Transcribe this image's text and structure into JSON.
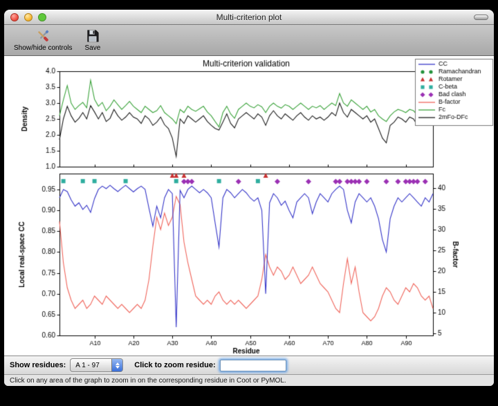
{
  "window": {
    "title": "Multi-criterion plot"
  },
  "toolbar": {
    "show_hide_label": "Show/hide controls",
    "save_label": "Save"
  },
  "controls": {
    "show_residues_label": "Show residues:",
    "chain_range_value": "A  1 - 97",
    "zoom_label": "Click to zoom residue:",
    "zoom_value": ""
  },
  "status": {
    "message": "Click on any area of the graph to zoom in on the corresponding residue in Coot or PyMOL."
  },
  "chart_data": [
    {
      "id": "density-plot",
      "type": "line",
      "title": "Multi-criterion validation",
      "ylabel": "Density",
      "ylim": [
        1.0,
        4.0
      ],
      "yticks": [
        1.0,
        1.5,
        2.0,
        2.5,
        3.0,
        3.5,
        4.0
      ],
      "ytick_labels": [
        "1.0",
        "1.5",
        "2.0",
        "2.5",
        "3.0",
        "3.5",
        "4.0"
      ],
      "xlim": [
        1,
        97
      ],
      "grid": false,
      "series": [
        {
          "name": "Fc",
          "color": "#3aa33a",
          "values": [
            2.6,
            3.1,
            3.55,
            3.0,
            2.8,
            2.92,
            3.02,
            2.85,
            3.72,
            3.12,
            2.9,
            3.02,
            2.76,
            2.9,
            3.1,
            2.95,
            2.8,
            2.92,
            3.05,
            2.9,
            2.8,
            2.7,
            2.9,
            2.8,
            2.7,
            2.76,
            2.92,
            2.7,
            2.6,
            2.5,
            2.35,
            2.8,
            2.7,
            2.9,
            2.8,
            2.74,
            2.82,
            2.9,
            2.72,
            2.6,
            2.42,
            2.25,
            2.7,
            2.9,
            2.66,
            2.52,
            2.8,
            2.9,
            3.0,
            2.9,
            2.85,
            2.95,
            2.88,
            2.7,
            2.9,
            3.0,
            2.9,
            2.84,
            2.95,
            2.9,
            2.8,
            2.9,
            3.0,
            2.9,
            2.8,
            2.9,
            2.85,
            2.92,
            2.8,
            2.9,
            3.0,
            2.92,
            3.3,
            3.0,
            2.9,
            3.1,
            3.0,
            2.9,
            2.8,
            2.9,
            2.72,
            2.8,
            2.6,
            2.5,
            2.42,
            2.6,
            2.72,
            2.8,
            2.76,
            2.7,
            2.8,
            2.76,
            2.62,
            2.8,
            3.5,
            3.3,
            3.4
          ]
        },
        {
          "name": "2mFo-DFc",
          "color": "#1a1a1a",
          "values": [
            1.85,
            2.5,
            2.9,
            2.6,
            2.4,
            2.52,
            2.7,
            2.5,
            2.92,
            2.72,
            2.5,
            2.7,
            2.42,
            2.52,
            2.8,
            2.6,
            2.46,
            2.56,
            2.7,
            2.56,
            2.5,
            2.36,
            2.6,
            2.5,
            2.3,
            2.4,
            2.56,
            2.32,
            2.2,
            1.9,
            1.32,
            2.5,
            2.36,
            2.6,
            2.5,
            2.4,
            2.5,
            2.6,
            2.42,
            2.3,
            2.2,
            2.15,
            2.4,
            2.66,
            2.36,
            2.22,
            2.5,
            2.6,
            2.7,
            2.6,
            2.5,
            2.66,
            2.56,
            2.3,
            2.6,
            2.76,
            2.6,
            2.5,
            2.66,
            2.56,
            2.46,
            2.6,
            2.7,
            2.56,
            2.46,
            2.6,
            2.5,
            2.56,
            2.46,
            2.56,
            2.7,
            2.6,
            3.0,
            2.7,
            2.56,
            2.8,
            2.7,
            2.6,
            2.5,
            2.6,
            2.4,
            2.5,
            2.2,
            1.9,
            1.75,
            2.3,
            2.4,
            2.56,
            2.5,
            2.4,
            2.56,
            2.5,
            2.3,
            2.5,
            3.1,
            2.8,
            3.0
          ]
        }
      ],
      "legend": {
        "position": "upper right",
        "entries": [
          {
            "label": "CC",
            "sample": "line",
            "color": "#3434c8"
          },
          {
            "label": "Ramachandran",
            "sample": "circle",
            "color": "#22913a"
          },
          {
            "label": "Rotamer",
            "sample": "triangle",
            "color": "#c83232"
          },
          {
            "label": "C-beta",
            "sample": "square",
            "color": "#2fae9f"
          },
          {
            "label": "Bad clash",
            "sample": "diamond",
            "color": "#9b30b4"
          },
          {
            "label": "B-factor",
            "sample": "line",
            "color": "#f0645a"
          },
          {
            "label": "Fc",
            "sample": "line",
            "color": "#3aa33a"
          },
          {
            "label": "2mFo-DFc",
            "sample": "line",
            "color": "#1a1a1a"
          }
        ]
      }
    },
    {
      "id": "cc-bfactor-plot",
      "type": "line",
      "xlabel": "Residue",
      "ylabel": "Local real-space CC",
      "y2label": "B-factor",
      "ylim": [
        0.6,
        0.988
      ],
      "yticks": [
        0.6,
        0.65,
        0.7,
        0.75,
        0.8,
        0.85,
        0.9,
        0.95
      ],
      "ytick_labels": [
        "0.60",
        "0.65",
        "0.70",
        "0.75",
        "0.80",
        "0.85",
        "0.90",
        "0.95"
      ],
      "y2lim": [
        4.5,
        43.5
      ],
      "y2ticks": [
        5,
        10,
        15,
        20,
        25,
        30,
        35,
        40
      ],
      "xlim": [
        1,
        97
      ],
      "xticks": [
        10,
        20,
        30,
        40,
        50,
        60,
        70,
        80,
        90
      ],
      "xtick_labels": [
        "A10",
        "A20",
        "A30",
        "A40",
        "A50",
        "A60",
        "A70",
        "A80",
        "A90"
      ],
      "grid": false,
      "series": [
        {
          "name": "CC",
          "axis": "left",
          "color": "#3434c8",
          "values": [
            0.93,
            0.95,
            0.945,
            0.925,
            0.91,
            0.918,
            0.902,
            0.912,
            0.895,
            0.928,
            0.95,
            0.958,
            0.952,
            0.96,
            0.952,
            0.945,
            0.953,
            0.96,
            0.952,
            0.944,
            0.952,
            0.958,
            0.95,
            0.905,
            0.862,
            0.91,
            0.882,
            0.93,
            0.95,
            0.94,
            0.62,
            0.948,
            0.93,
            0.95,
            0.958,
            0.95,
            0.942,
            0.95,
            0.942,
            0.93,
            0.87,
            0.812,
            0.93,
            0.95,
            0.942,
            0.93,
            0.94,
            0.95,
            0.942,
            0.93,
            0.922,
            0.93,
            0.9,
            0.7,
            0.918,
            0.94,
            0.93,
            0.912,
            0.922,
            0.9,
            0.882,
            0.92,
            0.93,
            0.94,
            0.93,
            0.892,
            0.92,
            0.94,
            0.93,
            0.92,
            0.94,
            0.95,
            0.958,
            0.95,
            0.9,
            0.87,
            0.92,
            0.94,
            0.93,
            0.92,
            0.93,
            0.91,
            0.88,
            0.83,
            0.8,
            0.88,
            0.91,
            0.93,
            0.92,
            0.93,
            0.94,
            0.93,
            0.92,
            0.91,
            0.93,
            0.92,
            0.94
          ]
        },
        {
          "name": "B-factor",
          "axis": "right",
          "color": "#f0645a",
          "values": [
            32,
            22,
            16,
            13,
            11,
            12,
            13,
            11,
            12,
            14,
            13,
            12,
            14,
            13,
            12,
            11,
            12,
            11,
            10,
            11,
            12,
            11,
            13,
            18,
            26,
            33,
            30,
            34,
            31,
            33,
            38,
            36,
            27,
            22,
            18,
            14,
            13,
            12,
            13,
            12,
            14,
            15,
            13,
            12,
            13,
            12,
            13,
            12,
            11,
            12,
            13,
            14,
            18,
            24,
            21,
            19,
            21,
            20,
            18,
            19,
            21,
            19,
            17,
            18,
            19,
            21,
            19,
            17,
            16,
            15,
            13,
            11,
            10,
            17,
            23,
            17,
            21,
            15,
            10,
            9,
            8,
            9,
            11,
            14,
            16,
            15,
            13,
            12,
            14,
            16,
            15,
            17,
            16,
            14,
            13,
            14,
            11
          ]
        }
      ],
      "markers": [
        {
          "name": "Rotamer",
          "shape": "triangle",
          "color": "#c83232",
          "y": 0.983,
          "x": [
            30,
            31,
            33,
            54
          ]
        },
        {
          "name": "C-beta",
          "shape": "square",
          "color": "#2fae9f",
          "y": 0.97,
          "x": [
            2,
            7,
            10,
            18,
            31,
            42,
            52
          ]
        },
        {
          "name": "Bad clash",
          "shape": "diamond",
          "color": "#9b30b4",
          "y": 0.969,
          "x": [
            33,
            34,
            35,
            47,
            57,
            65,
            72,
            73,
            75,
            76,
            77,
            78,
            80,
            85,
            88,
            90,
            91,
            92,
            93,
            95
          ]
        },
        {
          "name": "Ramachandran",
          "shape": "circle",
          "color": "#22913a",
          "y": 0.983,
          "x": []
        }
      ]
    }
  ]
}
